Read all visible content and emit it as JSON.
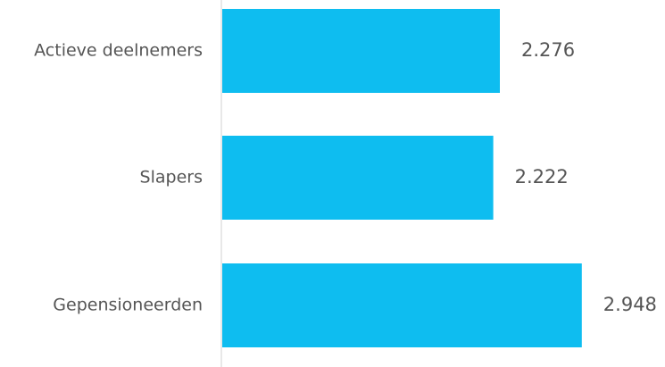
{
  "chart_data": {
    "type": "bar",
    "orientation": "horizontal",
    "categories": [
      "Actieve deelnemers",
      "Slapers",
      "Gepensioneerden"
    ],
    "values": [
      2276,
      2222,
      2948
    ],
    "value_labels": [
      "2.276",
      "2.222",
      "2.948"
    ],
    "xlim": [
      0,
      3000
    ],
    "grid": false,
    "bar_color": "#0EBDF0",
    "axis_color": "#E8E8E8",
    "text_color": "#555555"
  }
}
